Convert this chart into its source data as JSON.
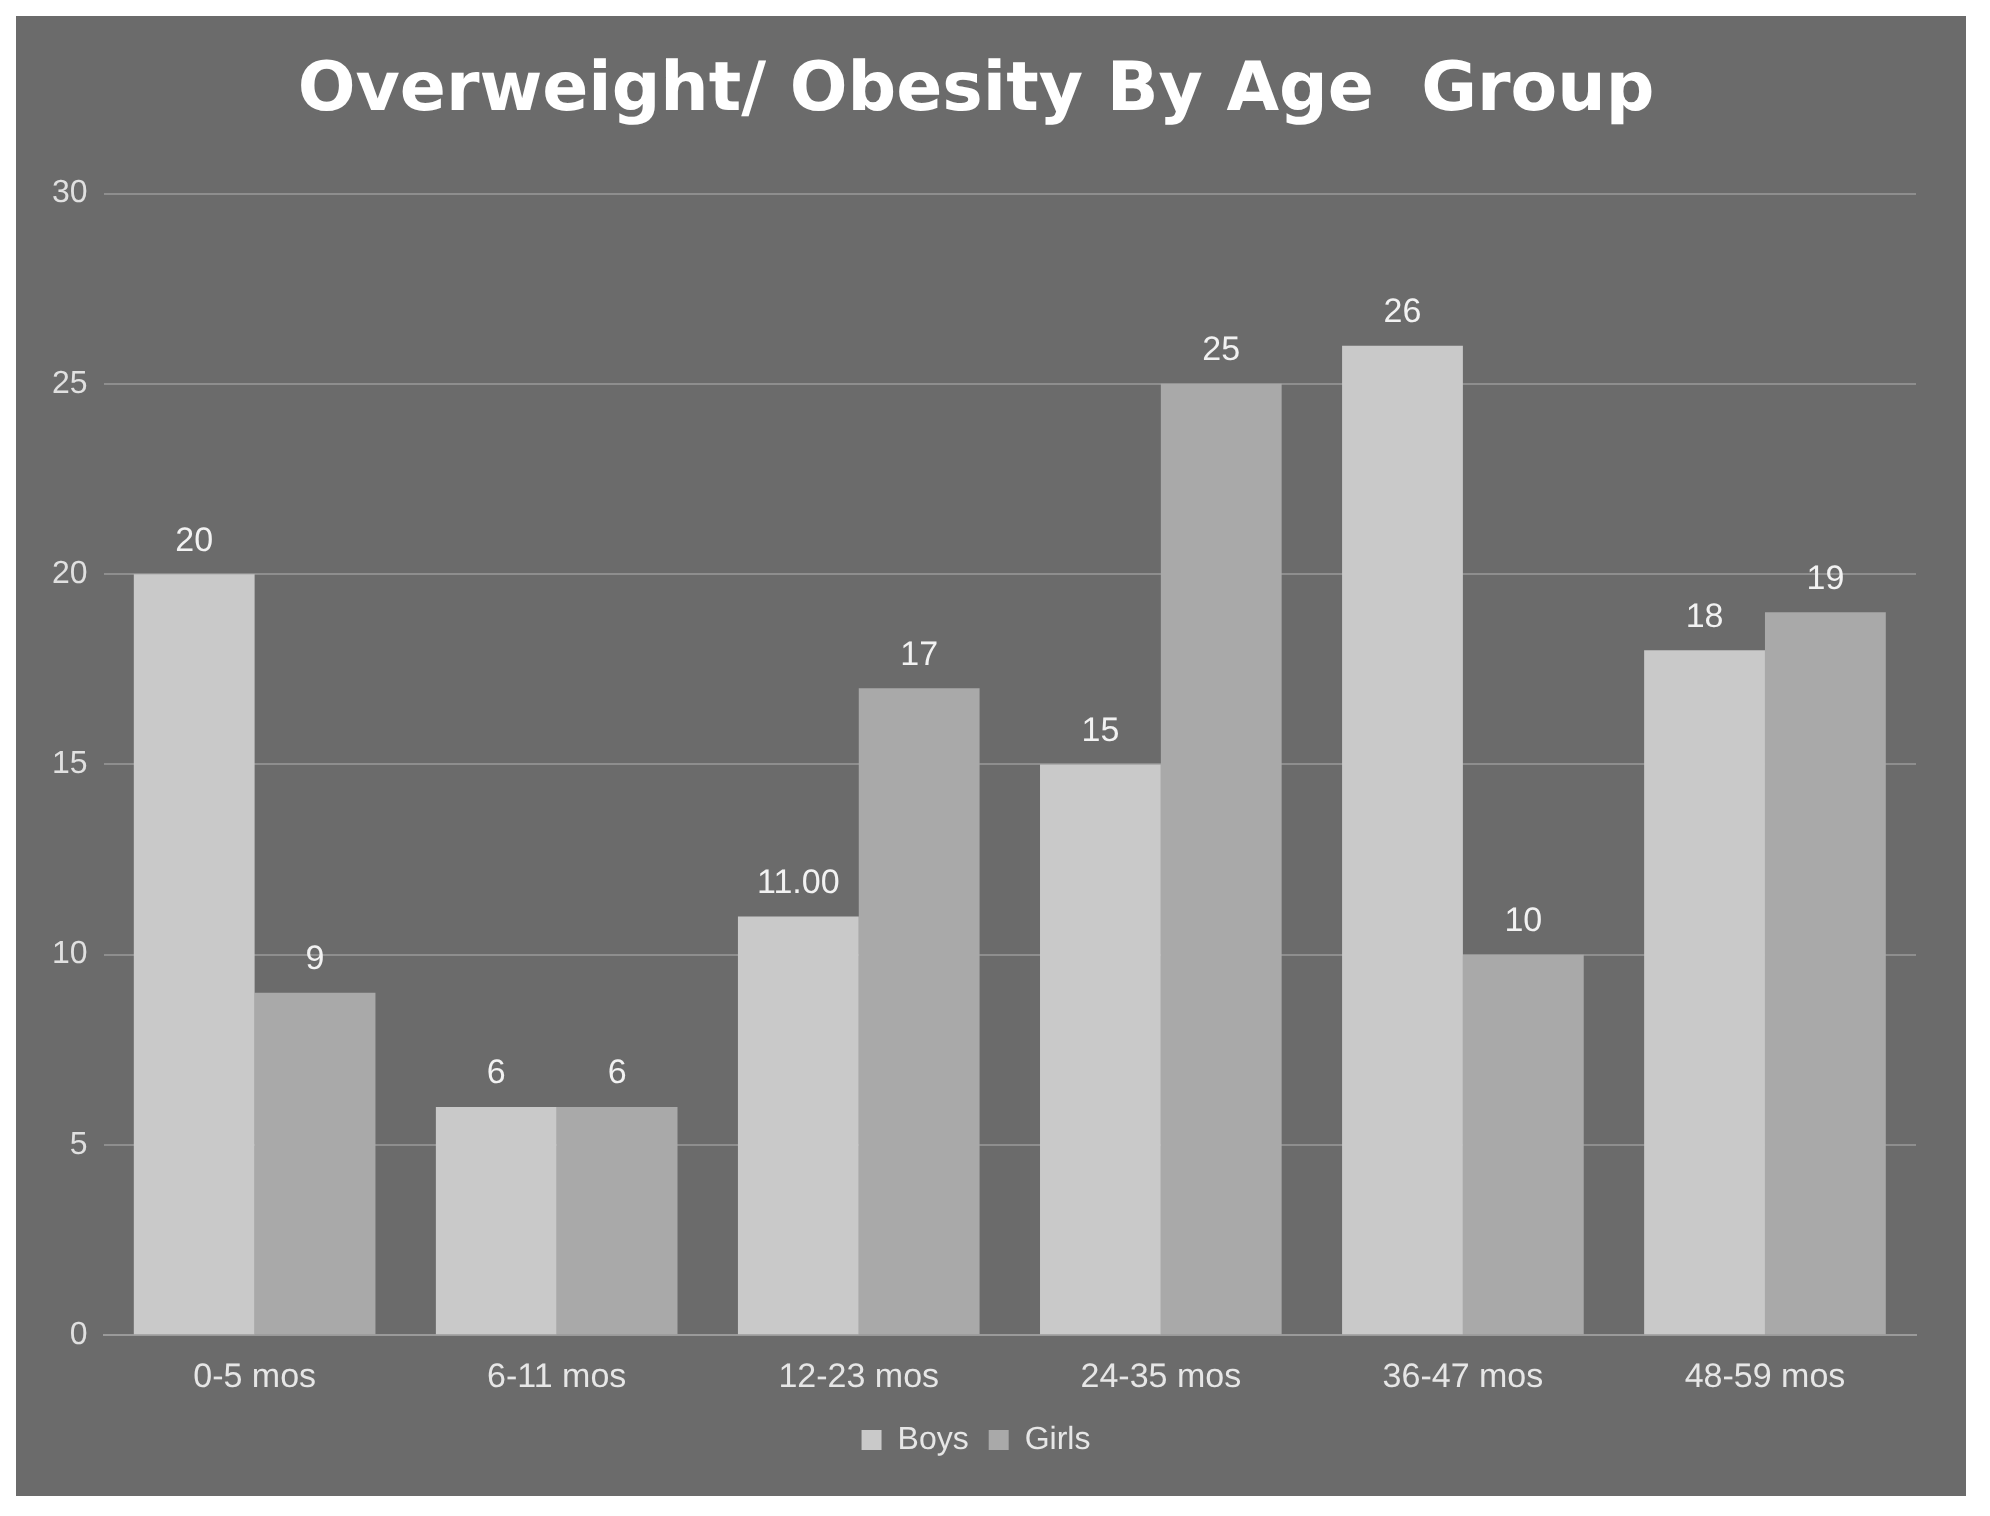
{
  "chart_data": {
    "type": "bar",
    "title": "Overweight/ Obesity By Age  Group",
    "categories": [
      "0-5 mos",
      "6-11 mos",
      "12-23 mos",
      "24-35 mos",
      "36-47 mos",
      "48-59 mos"
    ],
    "series": [
      {
        "name": "Boys",
        "color": "#c9c9c9",
        "values": [
          20,
          6,
          11,
          15,
          26,
          18
        ],
        "value_labels": [
          "20",
          "6",
          "11.00",
          "15",
          "26",
          "18"
        ]
      },
      {
        "name": "Girls",
        "color": "#a9a9a9",
        "values": [
          9,
          6,
          17,
          25,
          10,
          19
        ],
        "value_labels": [
          "9",
          "6",
          "17",
          "25",
          "10",
          "19"
        ]
      }
    ],
    "ylim": [
      0,
      30
    ],
    "yticks": [
      0,
      5,
      10,
      15,
      20,
      25,
      30
    ],
    "grid": "y",
    "legend": "bottom"
  }
}
